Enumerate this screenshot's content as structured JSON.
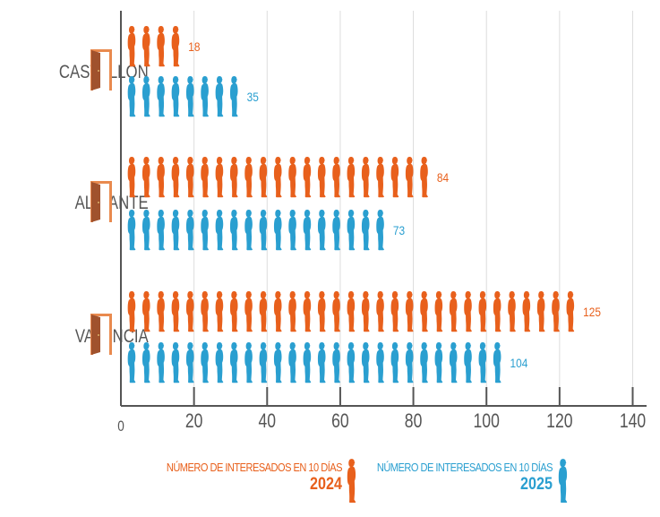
{
  "chart_data": {
    "type": "bar",
    "orientation": "horizontal",
    "style": "pictogram",
    "categories": [
      "CASTELLÓN",
      "ALICANTE",
      "VALENCIA"
    ],
    "series": [
      {
        "name": "NÚMERO DE INTERESADOS EN 10 DÍAS 2024",
        "label_line1": "NÚMERO DE INTERESADOS EN 10 DÍAS",
        "label_year": "2024",
        "color": "#e8601c",
        "values": [
          18,
          84,
          125
        ]
      },
      {
        "name": "NÚMERO DE INTERESADOS EN 10 DÍAS 2025",
        "label_line1": "NÚMERO DE INTERESADOS EN 10 DÍAS",
        "label_year": "2025",
        "color": "#2a9fd0",
        "values": [
          35,
          73,
          104
        ]
      }
    ],
    "xlim": [
      0,
      140
    ],
    "xticks": [
      "0",
      "20",
      "40",
      "60",
      "80",
      "100",
      "120",
      "140"
    ],
    "grid": true,
    "legend": "bottom",
    "icons": {
      "person": "person-silhouette-icon",
      "category": "open-door-icon"
    }
  }
}
